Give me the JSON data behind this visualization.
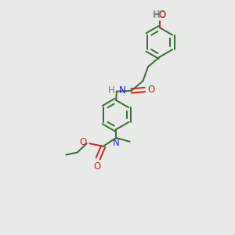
{
  "background_color": "#e8eae8",
  "bond_color": "#3a6b35",
  "N_color": "#2020cc",
  "O_color": "#cc2020",
  "H_color": "#708070",
  "font_size": 8.5,
  "lw": 1.4,
  "ring_r": 0.62,
  "xlim": [
    0,
    10
  ],
  "ylim": [
    0,
    10
  ]
}
